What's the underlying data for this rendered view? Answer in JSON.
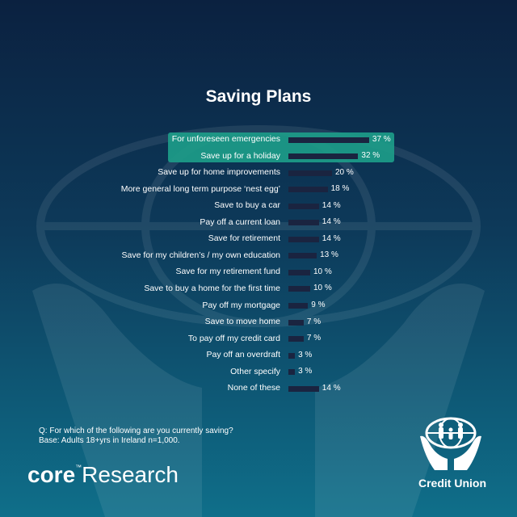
{
  "chart_data": {
    "type": "bar",
    "title": "Saving Plans",
    "categories": [
      "For unforeseen emergencies",
      "Save up for a holiday",
      "Save up for home improvements",
      "More general long term purpose ‘nest egg’",
      "Save to buy a car",
      "Pay off a current loan",
      "Save for retirement",
      "Save for my children’s / my own education",
      "Save for my retirement fund",
      "Save to buy a home for the first time",
      "Pay off my mortgage",
      "Save to move home",
      "To pay off my credit card",
      "Pay off an overdraft",
      "Other specify",
      "None of these"
    ],
    "values": [
      37,
      32,
      20,
      18,
      14,
      14,
      14,
      13,
      10,
      10,
      9,
      7,
      7,
      3,
      3,
      14
    ],
    "value_labels": [
      "37 %",
      "32 %",
      "20 %",
      "18 %",
      "14 %",
      "14 %",
      "14 %",
      "13 %",
      "10 %",
      "10 %",
      "9 %",
      "7 %",
      "7 %",
      "3 %",
      "3 %",
      "14 %"
    ],
    "highlighted": [
      0,
      1
    ],
    "orientation": "horizontal",
    "bar_color": "#1a2440",
    "highlight_color": "#1d9e8a"
  },
  "footnote": {
    "question": "Q: For which of the following are you currently saving?",
    "base": "Base: Adults 18+yrs in Ireland n=1,000."
  },
  "branding": {
    "core_bold": "core",
    "core_tm": "™",
    "core_rest": "Research",
    "credit_union": "Credit Union"
  }
}
